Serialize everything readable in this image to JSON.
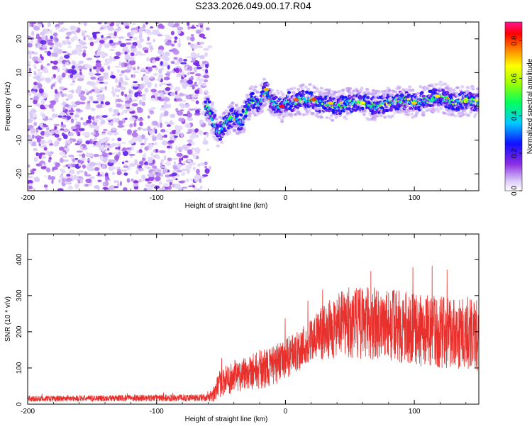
{
  "title": "S233.2026.049.00.17.R04",
  "chart_data": [
    {
      "type": "heatmap",
      "name": "spectrogram",
      "xlabel": "Height of straight line (km)",
      "ylabel": "Frequency (Hz)",
      "xlim": [
        -200,
        150
      ],
      "ylim": [
        -25,
        25
      ],
      "xticks": [
        -200,
        -100,
        0,
        100
      ],
      "yticks": [
        -20,
        -10,
        0,
        10,
        20
      ],
      "colorbar": {
        "label": "Normalized spectral amplitude",
        "range": [
          0.0,
          0.9
        ],
        "ticks": [
          0.0,
          0.2,
          0.4,
          0.6,
          0.8
        ]
      },
      "ridge": {
        "x": [
          -60,
          -57,
          -54,
          -52,
          -50,
          -47,
          -44,
          -40,
          -37,
          -34,
          -30,
          -27,
          -24,
          -21,
          -18,
          -15,
          -12,
          -9,
          -5,
          -2,
          2,
          6,
          10,
          15,
          20,
          25,
          30,
          40,
          50,
          60,
          70,
          80,
          90,
          100,
          110,
          120,
          130,
          140,
          150
        ],
        "y": [
          0,
          -3,
          -6,
          -8,
          -7,
          -5,
          -4,
          -3,
          -4,
          -5,
          -1,
          1,
          2,
          1,
          3,
          5,
          2,
          1,
          0,
          0,
          2,
          1,
          2,
          2,
          2,
          1,
          1,
          0,
          1,
          1,
          0,
          1,
          2,
          1,
          2,
          3,
          1,
          2,
          1
        ]
      },
      "noise_region_x": [
        -200,
        -60
      ]
    },
    {
      "type": "line",
      "name": "snr",
      "xlabel": "Height of straight line (km)",
      "ylabel": "SNR (10 * v/v)",
      "xlim": [
        -200,
        150
      ],
      "ylim": [
        0,
        470
      ],
      "xticks": [
        -200,
        -100,
        0,
        100
      ],
      "yticks": [
        0,
        100,
        200,
        300,
        400
      ],
      "color": "#e8302c",
      "envelope": {
        "x": [
          -200,
          -60,
          -55,
          -50,
          -40,
          -30,
          -20,
          -10,
          0,
          10,
          20,
          30,
          40,
          50,
          60,
          80,
          100,
          120,
          150
        ],
        "mean": [
          15,
          18,
          30,
          60,
          75,
          90,
          95,
          105,
          125,
          150,
          175,
          200,
          215,
          225,
          225,
          220,
          205,
          200,
          190
        ],
        "spread": [
          8,
          10,
          25,
          40,
          45,
          50,
          55,
          55,
          55,
          60,
          65,
          75,
          90,
          100,
          100,
          100,
          100,
          100,
          100
        ]
      }
    }
  ]
}
